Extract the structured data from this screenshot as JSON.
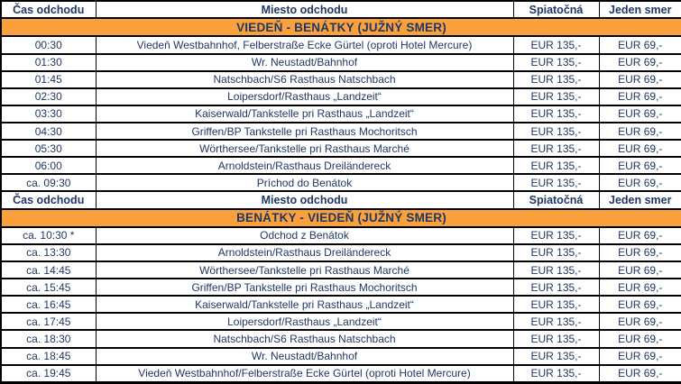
{
  "columns": [
    "Čas odchodu",
    "Miesto odchodu",
    "Spiatočná",
    "Jeden smer"
  ],
  "column_keys": [
    "time",
    "place",
    "return_price",
    "one_way_price"
  ],
  "sections": [
    {
      "title": "VIEDEŇ - BENÁTKY (JUŽNÝ SMER)",
      "rows": [
        {
          "time": "00:30",
          "place": "Viedeň Westbahnhof, Felberstraße Ecke Gürtel (oproti Hotel Mercure)",
          "return_price": "EUR 135,-",
          "one_way_price": "EUR 69,-"
        },
        {
          "time": "01:30",
          "place": "Wr. Neustadt/Bahnhof",
          "return_price": "EUR 135,-",
          "one_way_price": "EUR 69,-"
        },
        {
          "time": "01:45",
          "place": "Natschbach/S6 Rasthaus Natschbach",
          "return_price": "EUR 135,-",
          "one_way_price": "EUR 69,-"
        },
        {
          "time": "02:30",
          "place": "Loipersdorf/Rasthaus „Landzeit“",
          "return_price": "EUR 135,-",
          "one_way_price": "EUR 69,-"
        },
        {
          "time": "03:30",
          "place": "Kaiserwald/Tankstelle pri Rasthaus „Landzeit“",
          "return_price": "EUR 135,-",
          "one_way_price": "EUR 69,-"
        },
        {
          "time": "04:30",
          "place": "Griffen/BP Tankstelle pri Rasthaus Mochoritsch",
          "return_price": "EUR 135,-",
          "one_way_price": "EUR 69,-"
        },
        {
          "time": "05:30",
          "place": "Wörthersee/Tankstelle pri Rasthaus Marché",
          "return_price": "EUR 135,-",
          "one_way_price": "EUR 69,-"
        },
        {
          "time": "06:00",
          "place": "Arnoldstein/Rasthaus Dreiländereck",
          "return_price": "EUR 135,-",
          "one_way_price": "EUR 69,-"
        },
        {
          "time": "ca. 09:30",
          "place": "Príchod do Benátok",
          "return_price": "EUR 135,-",
          "one_way_price": "EUR 69,-"
        }
      ]
    },
    {
      "title": "BENÁTKY - VIEDEŇ (JUŽNÝ SMER)",
      "rows": [
        {
          "time": "ca. 10:30 *",
          "place": "Odchod z Benátok",
          "return_price": "EUR 135,-",
          "one_way_price": "EUR 69,-"
        },
        {
          "time": "ca. 13:30",
          "place": "Arnoldstein/Rasthaus Dreiländereck",
          "return_price": "EUR 135,-",
          "one_way_price": "EUR 69,-"
        },
        {
          "time": "ca. 14:45",
          "place": "Wörthersee/Tankstelle pri Rasthaus Marché",
          "return_price": "EUR 135,-",
          "one_way_price": "EUR 69,-"
        },
        {
          "time": "ca. 15:45",
          "place": "Griffen/BP Tankstelle pri Rasthaus Mochoritsch",
          "return_price": "EUR 135,-",
          "one_way_price": "EUR 69,-"
        },
        {
          "time": "ca. 16:45",
          "place": "Kaiserwald/Tankstelle pri Rasthaus „Landzeit“",
          "return_price": "EUR 135,-",
          "one_way_price": "EUR 69,-"
        },
        {
          "time": "ca. 17:45",
          "place": "Loipersdorf/Rasthaus „Landzeit“",
          "return_price": "EUR 135,-",
          "one_way_price": "EUR 69,-"
        },
        {
          "time": "ca. 18:30",
          "place": "Natschbach/S6 Rasthaus Natschbach",
          "return_price": "EUR 135,-",
          "one_way_price": "EUR 69,-"
        },
        {
          "time": "ca. 18:45",
          "place": "Wr. Neustadt/Bahnhof",
          "return_price": "EUR 135,-",
          "one_way_price": "EUR 69,-"
        },
        {
          "time": "ca. 19:45",
          "place": "Viedeň Westbahnhof/Felberstraße Ecke Gürtel (oproti Hotel Mercure)",
          "return_price": "EUR 135,-",
          "one_way_price": "EUR 69,-"
        }
      ]
    }
  ],
  "colors": {
    "section_header_orange": "#FAA03C",
    "text_navy": "#1F3864",
    "border_black": "#000000"
  }
}
